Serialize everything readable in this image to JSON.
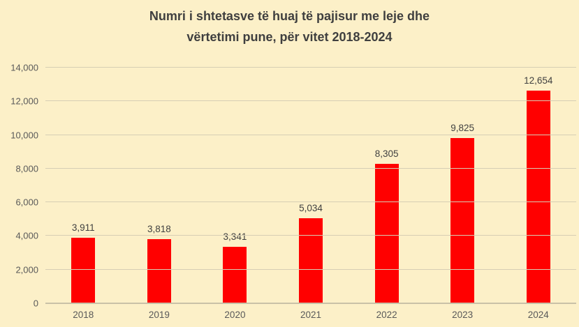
{
  "chart_data": {
    "type": "bar",
    "title": "Numri i shtetasve të huaj të pajisur me leje dhe vërtetimi pune, për vitet 2018-2024",
    "title_line1": "Numri i shtetasve të huaj të pajisur me leje dhe",
    "title_line2": "vërtetimi pune, për vitet 2018-2024",
    "categories": [
      "2018",
      "2019",
      "2020",
      "2021",
      "2022",
      "2023",
      "2024"
    ],
    "values": [
      3911,
      3818,
      3341,
      5034,
      8305,
      9825,
      12654
    ],
    "value_labels": [
      "3,911",
      "3,818",
      "3,341",
      "5,034",
      "8,305",
      "9,825",
      "12,654"
    ],
    "xlabel": "",
    "ylabel": "",
    "ylim": [
      0,
      14000
    ],
    "ytick_interval": 2000,
    "yticks": [
      "0",
      "2,000",
      "4,000",
      "6,000",
      "8,000",
      "10,000",
      "12,000",
      "14,000"
    ],
    "grid": true,
    "legend": false,
    "colors": {
      "background": "#FCF0C8",
      "bar": "#FF0000",
      "title": "#3F3F3F",
      "tick_label": "#595959",
      "data_label": "#404040",
      "gridline": "#D6CEB4",
      "axis_line": "#C9C1A7"
    }
  }
}
